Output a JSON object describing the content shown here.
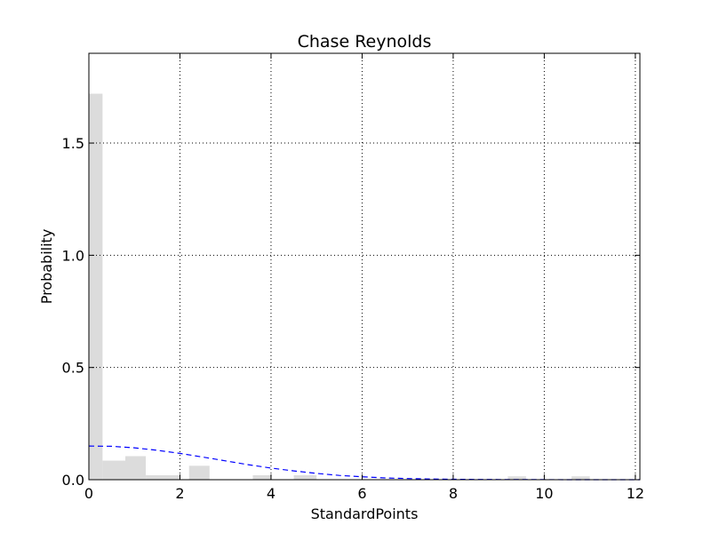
{
  "chart_data": {
    "type": "bar",
    "title": "Chase Reynolds",
    "xlabel": "StandardPoints",
    "ylabel": "Probability",
    "xlim": [
      0,
      12.1
    ],
    "ylim": [
      0,
      1.9
    ],
    "x_ticks": [
      {
        "value": 0,
        "label": "0"
      },
      {
        "value": 2,
        "label": "2"
      },
      {
        "value": 4,
        "label": "4"
      },
      {
        "value": 6,
        "label": "6"
      },
      {
        "value": 8,
        "label": "8"
      },
      {
        "value": 10,
        "label": "10"
      },
      {
        "value": 12,
        "label": "12"
      }
    ],
    "y_ticks": [
      {
        "value": 0.0,
        "label": "0.0"
      },
      {
        "value": 0.5,
        "label": "0.5"
      },
      {
        "value": 1.0,
        "label": "1.0"
      },
      {
        "value": 1.5,
        "label": "1.5"
      }
    ],
    "grid": true,
    "histogram": {
      "color": "#dcdcdc",
      "bins": [
        {
          "x0": 0.0,
          "x1": 0.3,
          "value": 1.72
        },
        {
          "x0": 0.3,
          "x1": 0.8,
          "value": 0.085
        },
        {
          "x0": 0.8,
          "x1": 1.25,
          "value": 0.105
        },
        {
          "x0": 1.25,
          "x1": 2.0,
          "value": 0.02
        },
        {
          "x0": 2.2,
          "x1": 2.65,
          "value": 0.062
        },
        {
          "x0": 3.6,
          "x1": 4.0,
          "value": 0.02
        },
        {
          "x0": 4.5,
          "x1": 5.0,
          "value": 0.02
        },
        {
          "x0": 9.2,
          "x1": 9.6,
          "value": 0.015
        },
        {
          "x0": 10.6,
          "x1": 11.0,
          "value": 0.015
        }
      ]
    },
    "density_curve": {
      "color": "#0000ff",
      "style": "dashed",
      "x": [
        0,
        0.5,
        1,
        1.5,
        2,
        2.5,
        3,
        3.5,
        4,
        4.5,
        5,
        5.5,
        6,
        6.5,
        7,
        7.5,
        8,
        8.5,
        9,
        9.5,
        10,
        10.5,
        11,
        11.5,
        12,
        12.1
      ],
      "y": [
        0.15,
        0.149,
        0.142,
        0.131,
        0.117,
        0.101,
        0.084,
        0.067,
        0.052,
        0.039,
        0.028,
        0.019,
        0.013,
        0.008,
        0.005,
        0.003,
        0.002,
        0.001,
        0.0007,
        0.0004,
        0.0002,
        0.0001,
        0.0001,
        0.0,
        0.0,
        0.0
      ]
    }
  }
}
